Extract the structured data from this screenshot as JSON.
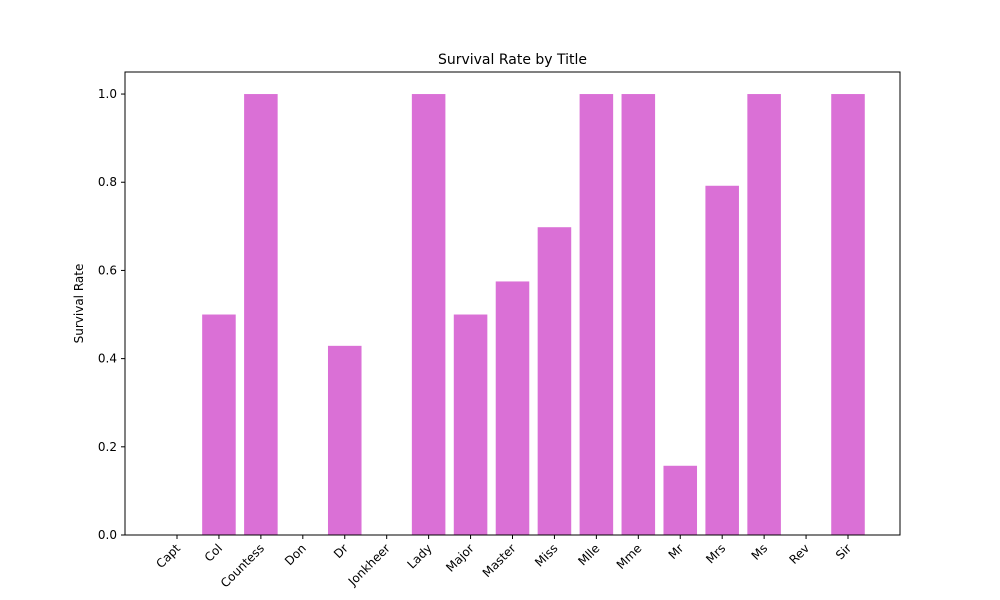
{
  "chart_data": {
    "type": "bar",
    "title": "Survival Rate by Title",
    "xlabel": "",
    "ylabel": "Survival Rate",
    "categories": [
      "Capt",
      "Col",
      "Countess",
      "Don",
      "Dr",
      "Jonkheer",
      "Lady",
      "Major",
      "Master",
      "Miss",
      "Mlle",
      "Mme",
      "Mr",
      "Mrs",
      "Ms",
      "Rev",
      "Sir"
    ],
    "values": [
      0.0,
      0.5,
      1.0,
      0.0,
      0.429,
      0.0,
      1.0,
      0.5,
      0.575,
      0.698,
      1.0,
      1.0,
      0.157,
      0.792,
      1.0,
      0.0,
      1.0
    ],
    "ylim": [
      0,
      1.05
    ],
    "yticks": [
      0.0,
      0.2,
      0.4,
      0.6,
      0.8,
      1.0
    ],
    "ytick_labels": [
      "0.0",
      "0.2",
      "0.4",
      "0.6",
      "0.8",
      "1.0"
    ],
    "bar_color": "#da70d6",
    "grid": false,
    "legend": "none"
  }
}
